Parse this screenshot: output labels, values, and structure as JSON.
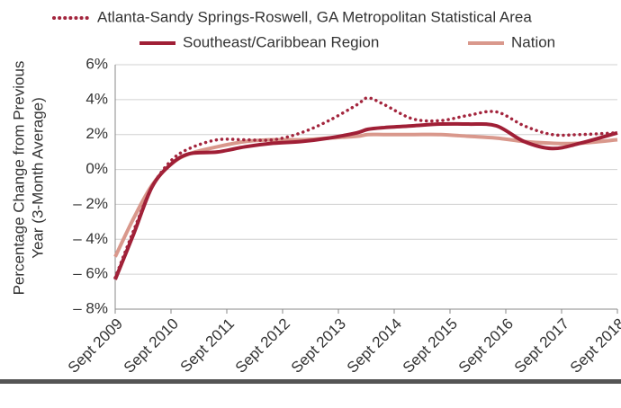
{
  "chart_data": {
    "type": "line",
    "y_label": [
      "Percentage Change from Previous",
      "Year (3-Month Average)"
    ],
    "x": [
      2009.67,
      2010.0,
      2010.33,
      2010.67,
      2011.0,
      2011.5,
      2012.0,
      2012.5,
      2013.0,
      2013.5,
      2014.0,
      2014.2,
      2014.5,
      2015.0,
      2015.5,
      2016.0,
      2016.5,
      2017.0,
      2017.5,
      2018.0,
      2018.67
    ],
    "series": [
      {
        "name": "Atlanta-Sandy Springs-Roswell, GA Metropolitan Statistical Area",
        "color": "#a3253d",
        "dash": "dotted",
        "values": [
          -6.2,
          -3.5,
          -1.0,
          0.5,
          1.2,
          1.7,
          1.7,
          1.7,
          2.1,
          2.8,
          3.7,
          4.1,
          3.7,
          2.9,
          2.8,
          3.1,
          3.3,
          2.5,
          2.0,
          2.0,
          2.1
        ]
      },
      {
        "name": "Southeast/Caribbean Region",
        "color": "#a01f36",
        "dash": "solid",
        "values": [
          -6.3,
          -3.7,
          -1.0,
          0.3,
          0.9,
          1.0,
          1.3,
          1.5,
          1.6,
          1.8,
          2.1,
          2.3,
          2.4,
          2.5,
          2.6,
          2.6,
          2.5,
          1.6,
          1.2,
          1.5,
          2.1
        ]
      },
      {
        "name": "Nation",
        "color": "#d9988c",
        "dash": "solid",
        "values": [
          -5.0,
          -2.8,
          -0.9,
          0.3,
          0.9,
          1.3,
          1.6,
          1.7,
          1.7,
          1.8,
          1.9,
          2.0,
          2.0,
          2.0,
          2.0,
          1.9,
          1.8,
          1.6,
          1.5,
          1.5,
          1.7
        ]
      }
    ],
    "xlim": [
      2009.67,
      2018.67
    ],
    "xticks": [
      {
        "value": 2009.67,
        "label": "Sept 2009"
      },
      {
        "value": 2010.67,
        "label": "Sept 2010"
      },
      {
        "value": 2011.67,
        "label": "Sept 2011"
      },
      {
        "value": 2012.67,
        "label": "Sept 2012"
      },
      {
        "value": 2013.67,
        "label": "Sept 2013"
      },
      {
        "value": 2014.67,
        "label": "Sept 2014"
      },
      {
        "value": 2015.67,
        "label": "Sept 2015"
      },
      {
        "value": 2016.67,
        "label": "Sept 2016"
      },
      {
        "value": 2017.67,
        "label": "Sept 2017"
      },
      {
        "value": 2018.67,
        "label": "Sept 2018"
      }
    ],
    "ylim": [
      -8,
      6
    ],
    "yticks": [
      {
        "value": 6,
        "label": "6%"
      },
      {
        "value": 4,
        "label": "4%"
      },
      {
        "value": 2,
        "label": "2%"
      },
      {
        "value": 0,
        "label": "0%"
      },
      {
        "value": -2,
        "label": "– 2%"
      },
      {
        "value": -4,
        "label": "– 4%"
      },
      {
        "value": -6,
        "label": "– 6%"
      },
      {
        "value": -8,
        "label": "– 8%"
      }
    ],
    "grid": true
  }
}
